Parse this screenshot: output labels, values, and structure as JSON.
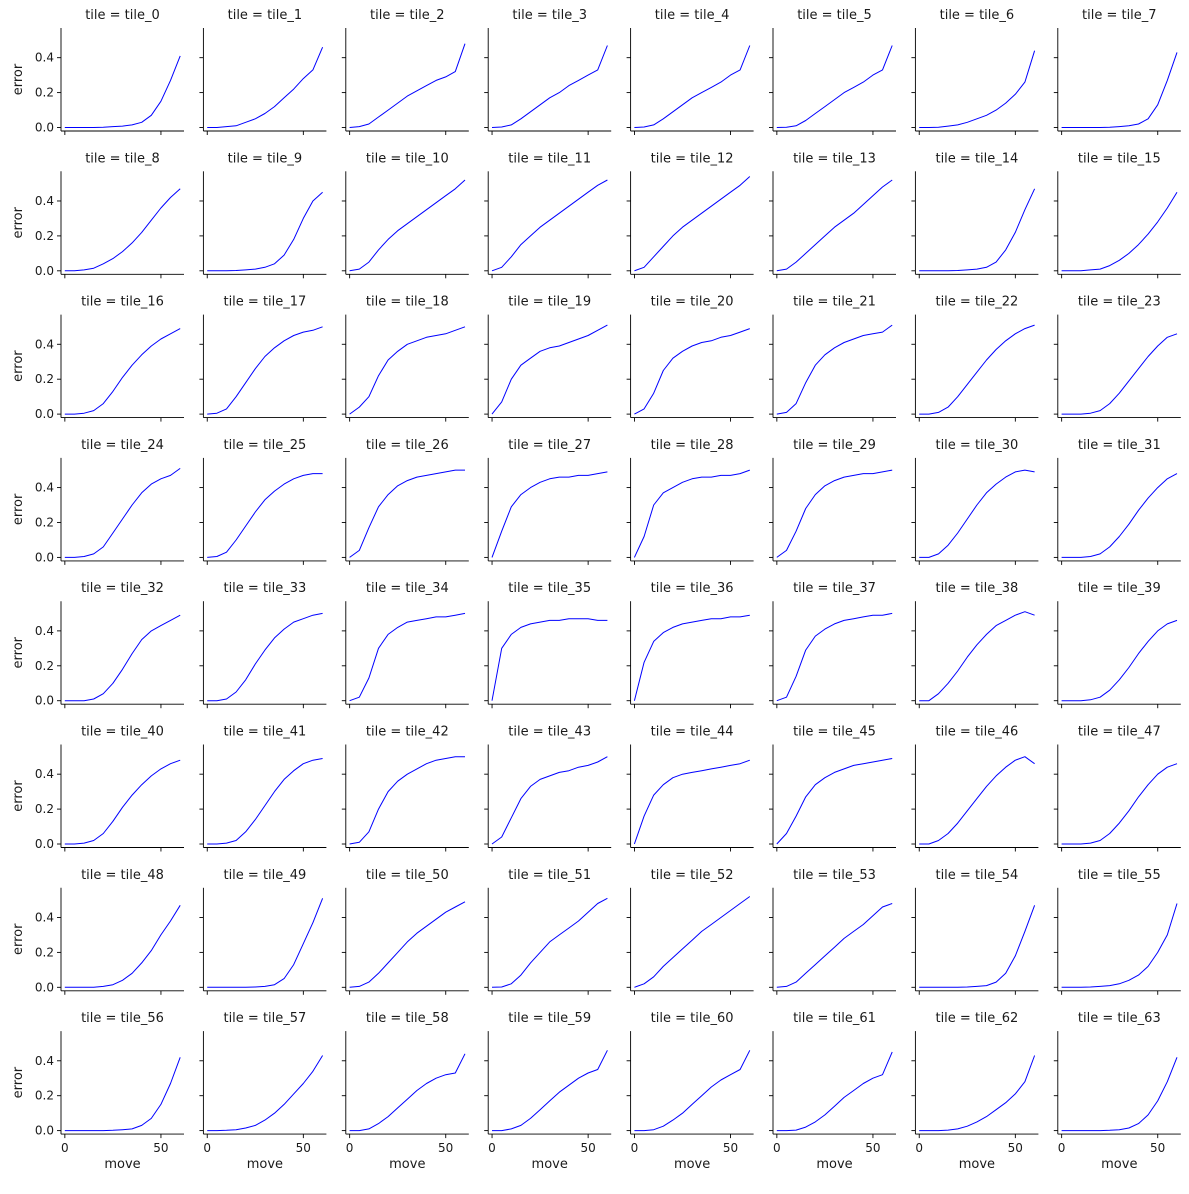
{
  "chart_data": {
    "type": "line",
    "layout": "facet-grid",
    "facet_rows": 8,
    "facet_cols": 8,
    "facet_label_prefix": "tile = ",
    "xlabel": "move",
    "ylabel": "error",
    "xlim": [
      -2,
      62
    ],
    "ylim": [
      -0.02,
      0.57
    ],
    "xticks": [
      0,
      50
    ],
    "yticks": [
      0.0,
      0.2,
      0.4
    ],
    "ytick_labels": [
      "0.0",
      "0.2",
      "0.4"
    ],
    "line_color": "#0000ff",
    "grid": false,
    "x": [
      0,
      5,
      10,
      15,
      20,
      25,
      30,
      35,
      40,
      45,
      50,
      55,
      60
    ],
    "series": [
      {
        "name": "tile_0",
        "values": [
          0.0,
          0.0,
          0.0,
          0.0,
          0.002,
          0.005,
          0.008,
          0.015,
          0.03,
          0.07,
          0.15,
          0.27,
          0.41
        ]
      },
      {
        "name": "tile_1",
        "values": [
          0.0,
          0.0,
          0.005,
          0.01,
          0.03,
          0.05,
          0.08,
          0.12,
          0.17,
          0.22,
          0.28,
          0.33,
          0.46
        ]
      },
      {
        "name": "tile_2",
        "values": [
          0.0,
          0.005,
          0.02,
          0.06,
          0.1,
          0.14,
          0.18,
          0.21,
          0.24,
          0.27,
          0.29,
          0.32,
          0.48
        ]
      },
      {
        "name": "tile_3",
        "values": [
          0.0,
          0.003,
          0.015,
          0.05,
          0.09,
          0.13,
          0.17,
          0.2,
          0.24,
          0.27,
          0.3,
          0.33,
          0.47
        ]
      },
      {
        "name": "tile_4",
        "values": [
          0.0,
          0.003,
          0.015,
          0.05,
          0.09,
          0.13,
          0.17,
          0.2,
          0.23,
          0.26,
          0.3,
          0.33,
          0.47
        ]
      },
      {
        "name": "tile_5",
        "values": [
          0.0,
          0.002,
          0.01,
          0.04,
          0.08,
          0.12,
          0.16,
          0.2,
          0.23,
          0.26,
          0.3,
          0.33,
          0.47
        ]
      },
      {
        "name": "tile_6",
        "values": [
          0.0,
          0.0,
          0.002,
          0.008,
          0.015,
          0.03,
          0.05,
          0.07,
          0.1,
          0.14,
          0.19,
          0.26,
          0.44
        ]
      },
      {
        "name": "tile_7",
        "values": [
          0.0,
          0.0,
          0.0,
          0.0,
          0.0,
          0.002,
          0.005,
          0.01,
          0.02,
          0.05,
          0.13,
          0.27,
          0.43
        ]
      },
      {
        "name": "tile_8",
        "values": [
          0.0,
          0.0,
          0.005,
          0.015,
          0.04,
          0.07,
          0.11,
          0.16,
          0.22,
          0.29,
          0.36,
          0.42,
          0.47
        ]
      },
      {
        "name": "tile_9",
        "values": [
          0.0,
          0.0,
          0.0,
          0.002,
          0.005,
          0.01,
          0.02,
          0.04,
          0.09,
          0.18,
          0.3,
          0.4,
          0.45
        ]
      },
      {
        "name": "tile_10",
        "values": [
          0.0,
          0.01,
          0.05,
          0.12,
          0.18,
          0.23,
          0.27,
          0.31,
          0.35,
          0.39,
          0.43,
          0.47,
          0.52
        ]
      },
      {
        "name": "tile_11",
        "values": [
          0.0,
          0.02,
          0.08,
          0.15,
          0.2,
          0.25,
          0.29,
          0.33,
          0.37,
          0.41,
          0.45,
          0.49,
          0.52
        ]
      },
      {
        "name": "tile_12",
        "values": [
          0.0,
          0.02,
          0.08,
          0.14,
          0.2,
          0.25,
          0.29,
          0.33,
          0.37,
          0.41,
          0.45,
          0.49,
          0.54
        ]
      },
      {
        "name": "tile_13",
        "values": [
          0.0,
          0.01,
          0.05,
          0.1,
          0.15,
          0.2,
          0.25,
          0.29,
          0.33,
          0.38,
          0.43,
          0.48,
          0.52
        ]
      },
      {
        "name": "tile_14",
        "values": [
          0.0,
          0.0,
          0.0,
          0.0,
          0.002,
          0.005,
          0.01,
          0.02,
          0.05,
          0.12,
          0.22,
          0.35,
          0.47
        ]
      },
      {
        "name": "tile_15",
        "values": [
          0.0,
          0.0,
          0.0,
          0.005,
          0.01,
          0.03,
          0.06,
          0.1,
          0.15,
          0.21,
          0.28,
          0.36,
          0.45
        ]
      },
      {
        "name": "tile_16",
        "values": [
          0.0,
          0.0,
          0.005,
          0.02,
          0.06,
          0.13,
          0.21,
          0.28,
          0.34,
          0.39,
          0.43,
          0.46,
          0.49
        ]
      },
      {
        "name": "tile_17",
        "values": [
          0.0,
          0.005,
          0.03,
          0.1,
          0.18,
          0.26,
          0.33,
          0.38,
          0.42,
          0.45,
          0.47,
          0.48,
          0.5
        ]
      },
      {
        "name": "tile_18",
        "values": [
          0.0,
          0.04,
          0.1,
          0.22,
          0.31,
          0.36,
          0.4,
          0.42,
          0.44,
          0.45,
          0.46,
          0.48,
          0.5
        ]
      },
      {
        "name": "tile_19",
        "values": [
          0.0,
          0.07,
          0.2,
          0.28,
          0.32,
          0.36,
          0.38,
          0.39,
          0.41,
          0.43,
          0.45,
          0.48,
          0.51
        ]
      },
      {
        "name": "tile_20",
        "values": [
          0.0,
          0.03,
          0.12,
          0.25,
          0.32,
          0.36,
          0.39,
          0.41,
          0.42,
          0.44,
          0.45,
          0.47,
          0.49
        ]
      },
      {
        "name": "tile_21",
        "values": [
          0.0,
          0.01,
          0.06,
          0.18,
          0.28,
          0.34,
          0.38,
          0.41,
          0.43,
          0.45,
          0.46,
          0.47,
          0.51
        ]
      },
      {
        "name": "tile_22",
        "values": [
          0.0,
          0.0,
          0.01,
          0.04,
          0.1,
          0.17,
          0.24,
          0.31,
          0.37,
          0.42,
          0.46,
          0.49,
          0.51
        ]
      },
      {
        "name": "tile_23",
        "values": [
          0.0,
          0.0,
          0.0,
          0.005,
          0.02,
          0.06,
          0.12,
          0.19,
          0.26,
          0.33,
          0.39,
          0.44,
          0.46
        ]
      },
      {
        "name": "tile_24",
        "values": [
          0.0,
          0.0,
          0.005,
          0.02,
          0.06,
          0.14,
          0.22,
          0.3,
          0.37,
          0.42,
          0.45,
          0.47,
          0.51
        ]
      },
      {
        "name": "tile_25",
        "values": [
          0.0,
          0.005,
          0.03,
          0.1,
          0.18,
          0.26,
          0.33,
          0.38,
          0.42,
          0.45,
          0.47,
          0.48,
          0.48
        ]
      },
      {
        "name": "tile_26",
        "values": [
          0.0,
          0.04,
          0.17,
          0.29,
          0.36,
          0.41,
          0.44,
          0.46,
          0.47,
          0.48,
          0.49,
          0.5,
          0.5
        ]
      },
      {
        "name": "tile_27",
        "values": [
          0.0,
          0.15,
          0.29,
          0.36,
          0.4,
          0.43,
          0.45,
          0.46,
          0.46,
          0.47,
          0.47,
          0.48,
          0.49
        ]
      },
      {
        "name": "tile_28",
        "values": [
          0.0,
          0.12,
          0.3,
          0.37,
          0.4,
          0.43,
          0.45,
          0.46,
          0.46,
          0.47,
          0.47,
          0.48,
          0.5
        ]
      },
      {
        "name": "tile_29",
        "values": [
          0.0,
          0.04,
          0.15,
          0.28,
          0.36,
          0.41,
          0.44,
          0.46,
          0.47,
          0.48,
          0.48,
          0.49,
          0.5
        ]
      },
      {
        "name": "tile_30",
        "values": [
          0.0,
          0.0,
          0.02,
          0.07,
          0.14,
          0.22,
          0.3,
          0.37,
          0.42,
          0.46,
          0.49,
          0.5,
          0.49
        ]
      },
      {
        "name": "tile_31",
        "values": [
          0.0,
          0.0,
          0.0,
          0.005,
          0.02,
          0.06,
          0.12,
          0.19,
          0.27,
          0.34,
          0.4,
          0.45,
          0.48
        ]
      },
      {
        "name": "tile_32",
        "values": [
          0.0,
          0.0,
          0.0,
          0.01,
          0.04,
          0.1,
          0.18,
          0.27,
          0.35,
          0.4,
          0.43,
          0.46,
          0.49
        ]
      },
      {
        "name": "tile_33",
        "values": [
          0.0,
          0.0,
          0.01,
          0.05,
          0.12,
          0.21,
          0.29,
          0.36,
          0.41,
          0.45,
          0.47,
          0.49,
          0.5
        ]
      },
      {
        "name": "tile_34",
        "values": [
          0.0,
          0.02,
          0.13,
          0.3,
          0.38,
          0.42,
          0.45,
          0.46,
          0.47,
          0.48,
          0.48,
          0.49,
          0.5
        ]
      },
      {
        "name": "tile_35",
        "values": [
          0.0,
          0.3,
          0.38,
          0.42,
          0.44,
          0.45,
          0.46,
          0.46,
          0.47,
          0.47,
          0.47,
          0.46,
          0.46
        ]
      },
      {
        "name": "tile_36",
        "values": [
          0.0,
          0.22,
          0.34,
          0.39,
          0.42,
          0.44,
          0.45,
          0.46,
          0.47,
          0.47,
          0.48,
          0.48,
          0.49
        ]
      },
      {
        "name": "tile_37",
        "values": [
          0.0,
          0.02,
          0.14,
          0.29,
          0.37,
          0.41,
          0.44,
          0.46,
          0.47,
          0.48,
          0.49,
          0.49,
          0.5
        ]
      },
      {
        "name": "tile_38",
        "values": [
          0.0,
          0.0,
          0.04,
          0.1,
          0.17,
          0.25,
          0.32,
          0.38,
          0.43,
          0.46,
          0.49,
          0.51,
          0.49
        ]
      },
      {
        "name": "tile_39",
        "values": [
          0.0,
          0.0,
          0.0,
          0.005,
          0.02,
          0.06,
          0.12,
          0.19,
          0.27,
          0.34,
          0.4,
          0.44,
          0.46
        ]
      },
      {
        "name": "tile_40",
        "values": [
          0.0,
          0.0,
          0.005,
          0.02,
          0.06,
          0.13,
          0.21,
          0.28,
          0.34,
          0.39,
          0.43,
          0.46,
          0.48
        ]
      },
      {
        "name": "tile_41",
        "values": [
          0.0,
          0.0,
          0.005,
          0.02,
          0.07,
          0.14,
          0.22,
          0.3,
          0.37,
          0.42,
          0.46,
          0.48,
          0.49
        ]
      },
      {
        "name": "tile_42",
        "values": [
          0.0,
          0.01,
          0.07,
          0.2,
          0.3,
          0.36,
          0.4,
          0.43,
          0.46,
          0.48,
          0.49,
          0.5,
          0.5
        ]
      },
      {
        "name": "tile_43",
        "values": [
          0.0,
          0.04,
          0.15,
          0.26,
          0.33,
          0.37,
          0.39,
          0.41,
          0.42,
          0.44,
          0.45,
          0.47,
          0.5
        ]
      },
      {
        "name": "tile_44",
        "values": [
          0.0,
          0.16,
          0.28,
          0.34,
          0.38,
          0.4,
          0.41,
          0.42,
          0.43,
          0.44,
          0.45,
          0.46,
          0.48
        ]
      },
      {
        "name": "tile_45",
        "values": [
          0.0,
          0.06,
          0.16,
          0.27,
          0.34,
          0.38,
          0.41,
          0.43,
          0.45,
          0.46,
          0.47,
          0.48,
          0.49
        ]
      },
      {
        "name": "tile_46",
        "values": [
          0.0,
          0.0,
          0.02,
          0.06,
          0.12,
          0.19,
          0.26,
          0.33,
          0.39,
          0.44,
          0.48,
          0.5,
          0.46
        ]
      },
      {
        "name": "tile_47",
        "values": [
          0.0,
          0.0,
          0.0,
          0.005,
          0.02,
          0.06,
          0.12,
          0.19,
          0.27,
          0.34,
          0.4,
          0.44,
          0.46
        ]
      },
      {
        "name": "tile_48",
        "values": [
          0.0,
          0.0,
          0.0,
          0.0,
          0.005,
          0.015,
          0.04,
          0.08,
          0.14,
          0.21,
          0.3,
          0.38,
          0.47
        ]
      },
      {
        "name": "tile_49",
        "values": [
          0.0,
          0.0,
          0.0,
          0.0,
          0.0,
          0.002,
          0.005,
          0.015,
          0.05,
          0.13,
          0.25,
          0.37,
          0.51
        ]
      },
      {
        "name": "tile_50",
        "values": [
          0.0,
          0.005,
          0.03,
          0.08,
          0.14,
          0.2,
          0.26,
          0.31,
          0.35,
          0.39,
          0.43,
          0.46,
          0.49
        ]
      },
      {
        "name": "tile_51",
        "values": [
          0.0,
          0.002,
          0.02,
          0.07,
          0.14,
          0.2,
          0.26,
          0.3,
          0.34,
          0.38,
          0.43,
          0.48,
          0.51
        ]
      },
      {
        "name": "tile_52",
        "values": [
          0.0,
          0.02,
          0.06,
          0.12,
          0.17,
          0.22,
          0.27,
          0.32,
          0.36,
          0.4,
          0.44,
          0.48,
          0.52
        ]
      },
      {
        "name": "tile_53",
        "values": [
          0.0,
          0.005,
          0.03,
          0.08,
          0.13,
          0.18,
          0.23,
          0.28,
          0.32,
          0.36,
          0.41,
          0.46,
          0.48
        ]
      },
      {
        "name": "tile_54",
        "values": [
          0.0,
          0.0,
          0.0,
          0.0,
          0.0,
          0.002,
          0.005,
          0.01,
          0.03,
          0.08,
          0.18,
          0.32,
          0.47
        ]
      },
      {
        "name": "tile_55",
        "values": [
          0.0,
          0.0,
          0.0,
          0.002,
          0.005,
          0.01,
          0.02,
          0.04,
          0.07,
          0.12,
          0.2,
          0.3,
          0.48
        ]
      },
      {
        "name": "tile_56",
        "values": [
          0.0,
          0.0,
          0.0,
          0.0,
          0.0,
          0.002,
          0.005,
          0.01,
          0.03,
          0.07,
          0.15,
          0.27,
          0.42
        ]
      },
      {
        "name": "tile_57",
        "values": [
          0.0,
          0.0,
          0.002,
          0.005,
          0.015,
          0.03,
          0.06,
          0.1,
          0.15,
          0.21,
          0.27,
          0.34,
          0.43
        ]
      },
      {
        "name": "tile_58",
        "values": [
          0.0,
          0.0,
          0.01,
          0.04,
          0.08,
          0.13,
          0.18,
          0.23,
          0.27,
          0.3,
          0.32,
          0.33,
          0.44
        ]
      },
      {
        "name": "tile_59",
        "values": [
          0.0,
          0.0,
          0.01,
          0.03,
          0.07,
          0.12,
          0.17,
          0.22,
          0.26,
          0.3,
          0.33,
          0.35,
          0.46
        ]
      },
      {
        "name": "tile_60",
        "values": [
          0.0,
          0.0,
          0.005,
          0.025,
          0.06,
          0.1,
          0.15,
          0.2,
          0.25,
          0.29,
          0.32,
          0.35,
          0.46
        ]
      },
      {
        "name": "tile_61",
        "values": [
          0.0,
          0.0,
          0.003,
          0.02,
          0.05,
          0.09,
          0.14,
          0.19,
          0.23,
          0.27,
          0.3,
          0.32,
          0.45
        ]
      },
      {
        "name": "tile_62",
        "values": [
          0.0,
          0.0,
          0.0,
          0.003,
          0.01,
          0.025,
          0.05,
          0.08,
          0.12,
          0.16,
          0.21,
          0.28,
          0.43
        ]
      },
      {
        "name": "tile_63",
        "values": [
          0.0,
          0.0,
          0.0,
          0.0,
          0.0,
          0.002,
          0.005,
          0.015,
          0.04,
          0.09,
          0.17,
          0.28,
          0.42
        ]
      }
    ]
  }
}
